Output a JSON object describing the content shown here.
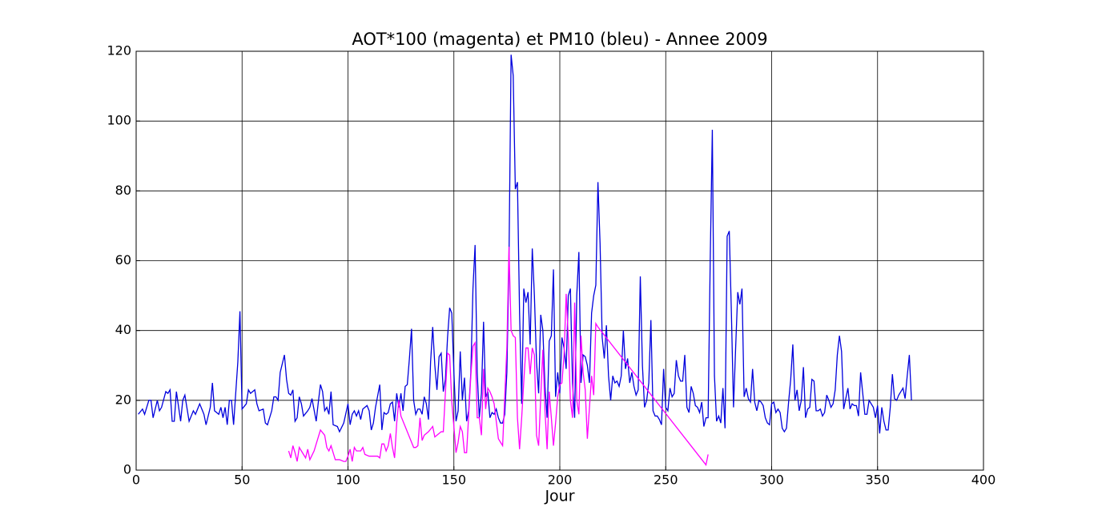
{
  "chart_data": {
    "type": "line",
    "title": "AOT*100 (magenta) et PM10 (bleu) - Annee 2009",
    "xlabel": "Jour",
    "xlim": [
      0,
      400
    ],
    "xticks": [
      0,
      50,
      100,
      150,
      200,
      250,
      300,
      350,
      400
    ],
    "ylim": [
      0,
      120
    ],
    "yticks": [
      0,
      20,
      40,
      60,
      80,
      100,
      120
    ],
    "grid": true,
    "series": [
      {
        "color": "#0000dd",
        "x": [
          1,
          3,
          4,
          6,
          7,
          8,
          10,
          11,
          12,
          14,
          15,
          16,
          17,
          18,
          19,
          21,
          22,
          23,
          25,
          27,
          28,
          30,
          32,
          33,
          35,
          36,
          37,
          39,
          40,
          41,
          42,
          43,
          44,
          45,
          46,
          47,
          48,
          49,
          50,
          52,
          53,
          54,
          56,
          57,
          58,
          60,
          61,
          62,
          64,
          65,
          66,
          67,
          68,
          70,
          71,
          72,
          73,
          74,
          75,
          76,
          77,
          78,
          79,
          81,
          82,
          83,
          85,
          86,
          87,
          88,
          89,
          90,
          91,
          92,
          93,
          95,
          96,
          98,
          100,
          101,
          102,
          103,
          104,
          105,
          106,
          107,
          109,
          110,
          111,
          112,
          113,
          115,
          116,
          117,
          118,
          119,
          120,
          121,
          122,
          123,
          124,
          125,
          126,
          127,
          128,
          129,
          130,
          131,
          132,
          133,
          134,
          135,
          136,
          137,
          138,
          139,
          140,
          141,
          142,
          143,
          144,
          145,
          146,
          147,
          148,
          149,
          150,
          151,
          152,
          153,
          154,
          155,
          156,
          157,
          158,
          159,
          160,
          161,
          162,
          163,
          164,
          165,
          166,
          167,
          168,
          169,
          170,
          171,
          172,
          173,
          174,
          175,
          176,
          177,
          178,
          179,
          180,
          181,
          182,
          183,
          184,
          185,
          186,
          187,
          188,
          189,
          190,
          191,
          192,
          193,
          194,
          195,
          196,
          197,
          198,
          199,
          200,
          201,
          202,
          203,
          204,
          205,
          206,
          207,
          208,
          209,
          210,
          211,
          212,
          213,
          214,
          215,
          216,
          217,
          218,
          219,
          220,
          221,
          222,
          223,
          224,
          225,
          226,
          227,
          228,
          229,
          230,
          231,
          232,
          233,
          234,
          235,
          236,
          237,
          238,
          239,
          240,
          241,
          242,
          243,
          244,
          245,
          246,
          247,
          248,
          249,
          250,
          251,
          252,
          253,
          254,
          255,
          256,
          257,
          258,
          259,
          260,
          261,
          262,
          263,
          264,
          265,
          266,
          267,
          268,
          269,
          270,
          271,
          272,
          273,
          274,
          275,
          276,
          277,
          278,
          279,
          280,
          281,
          282,
          283,
          284,
          285,
          286,
          287,
          288,
          289,
          290,
          291,
          292,
          293,
          294,
          295,
          296,
          297,
          298,
          299,
          300,
          301,
          302,
          303,
          304,
          305,
          306,
          307,
          308,
          309,
          310,
          311,
          312,
          313,
          314,
          315,
          316,
          317,
          318,
          319,
          320,
          321,
          322,
          323,
          324,
          325,
          326,
          327,
          328,
          329,
          330,
          331,
          332,
          333,
          334,
          335,
          336,
          337,
          338,
          339,
          340,
          341,
          342,
          343,
          344,
          345,
          346,
          347,
          348,
          349,
          350,
          351,
          352,
          353,
          354,
          355,
          356,
          357,
          358,
          359,
          360,
          361,
          362,
          363,
          364,
          365,
          366
        ],
        "values": [
          16,
          17.5,
          16,
          20,
          20,
          15,
          20,
          17,
          18,
          22.5,
          22,
          23,
          14,
          14,
          22.5,
          14,
          20,
          21.5,
          14,
          17,
          16,
          19,
          16,
          13,
          18,
          25,
          17,
          16,
          18,
          15,
          18,
          13,
          20,
          20,
          13,
          22,
          31,
          45.5,
          17.5,
          19,
          23,
          22,
          23,
          19,
          17,
          17.5,
          13.5,
          13,
          17,
          21,
          21,
          20,
          28,
          33,
          26,
          22,
          21.5,
          23,
          14,
          15,
          21,
          19,
          15.5,
          17,
          18,
          20.5,
          14,
          19.5,
          24.5,
          22.5,
          17,
          18,
          16,
          22.5,
          13,
          12.5,
          11,
          13.5,
          19,
          13,
          16,
          17,
          15.5,
          17,
          14.5,
          17.5,
          18.5,
          17,
          11.5,
          13.5,
          18,
          24.5,
          11.5,
          16.5,
          16,
          16.5,
          19,
          19.5,
          14,
          22,
          18,
          22,
          17,
          24,
          24.5,
          32,
          40.5,
          20,
          16,
          17.5,
          17.5,
          16,
          21,
          19,
          14.5,
          31,
          41,
          30,
          23,
          32.5,
          33.5,
          22.5,
          26,
          38,
          46.5,
          45,
          28,
          14,
          17,
          34,
          20,
          26.5,
          14,
          17,
          28,
          52,
          64.5,
          28,
          15,
          22,
          42.5,
          21,
          22.5,
          15,
          16.5,
          16,
          17.5,
          15,
          13.5,
          13.5,
          16,
          28,
          60,
          119,
          113,
          80.5,
          82.5,
          45,
          19,
          52,
          48,
          51,
          36,
          63.5,
          50,
          31,
          22,
          44.5,
          40,
          24,
          15,
          37,
          38.5,
          57.5,
          21,
          28,
          22,
          38,
          35,
          29,
          50,
          52,
          25,
          15,
          50,
          62.5,
          25,
          33,
          32.5,
          30,
          25,
          45,
          50,
          53,
          82.5,
          65,
          38,
          32,
          41.5,
          27,
          20,
          27,
          25,
          25.5,
          24,
          27,
          40,
          29,
          32,
          25,
          28,
          24,
          21.5,
          23,
          55.5,
          30,
          18,
          20,
          25,
          43,
          17,
          15.5,
          15.5,
          14.5,
          13,
          29,
          18,
          17,
          23.5,
          21,
          22,
          31.5,
          27,
          25.5,
          25.5,
          33,
          18,
          16.5,
          24,
          22,
          18.5,
          18,
          16.5,
          19.5,
          12.5,
          15,
          15,
          60,
          97.5,
          27,
          14,
          15.5,
          13.5,
          23.5,
          12,
          67,
          68.5,
          45,
          18,
          35,
          51,
          47.5,
          52,
          21,
          23.5,
          20.5,
          19.5,
          29,
          19.5,
          17,
          20,
          19.5,
          18.5,
          15,
          13.5,
          13,
          19,
          19.5,
          16.5,
          17.5,
          16.5,
          12,
          11,
          12,
          19.5,
          26,
          36,
          20,
          23,
          17,
          20,
          29.5,
          15,
          17.5,
          18,
          26,
          25.5,
          17,
          17,
          17.5,
          15.5,
          16.5,
          21.5,
          20,
          18,
          19,
          23,
          33,
          38.5,
          34,
          17.5,
          20.5,
          23.5,
          17.5,
          19,
          18.5,
          18.5,
          15.5,
          28,
          22,
          16,
          16,
          20,
          19,
          18,
          15,
          18.5,
          10.5,
          18,
          14,
          11.5,
          11.5,
          18,
          27.5,
          20.5,
          20,
          21.5,
          22.5,
          23.5,
          20.5,
          27,
          33,
          20
        ]
      },
      {
        "color": "#ff00ff",
        "x": [
          72,
          73,
          74,
          75,
          76,
          77,
          79,
          80,
          81,
          82,
          84,
          86,
          87,
          89,
          90,
          91,
          92,
          93,
          94,
          96,
          98,
          99,
          100,
          101,
          102,
          103,
          104,
          106,
          107,
          108,
          110,
          114,
          115,
          116,
          117,
          118,
          119,
          120,
          121,
          122,
          123,
          124,
          125,
          127,
          131,
          132,
          133,
          134,
          135,
          136,
          138,
          140,
          141,
          142,
          144,
          145,
          147,
          148,
          149,
          150,
          151,
          152,
          153,
          154,
          155,
          156,
          158,
          159,
          160,
          161,
          162,
          163,
          164,
          165,
          166,
          167,
          168,
          169,
          171,
          172,
          173,
          175,
          176,
          177,
          178,
          179,
          180,
          181,
          182,
          183,
          184,
          185,
          186,
          187,
          188,
          189,
          190,
          191,
          192,
          193,
          194,
          195,
          196,
          197,
          198,
          199,
          200,
          201,
          202,
          203,
          204,
          205,
          206,
          207,
          208,
          209,
          210,
          211,
          212,
          213,
          214,
          215,
          216,
          217,
          218,
          269,
          270
        ],
        "values": [
          5.5,
          3.5,
          7,
          5,
          2.5,
          6.5,
          4.5,
          3.5,
          6,
          3,
          5.5,
          9.5,
          11.5,
          10,
          6.5,
          5.5,
          7,
          5,
          3,
          3,
          2.5,
          2.5,
          4,
          6,
          2.5,
          6.5,
          5.5,
          5.5,
          6.5,
          4.5,
          4,
          4,
          3.5,
          7.5,
          7.5,
          5.5,
          7,
          10.5,
          6.5,
          3.5,
          13.5,
          20,
          15.5,
          12.5,
          6.5,
          6.5,
          7,
          15,
          8.5,
          10,
          11,
          12.5,
          9.5,
          10,
          11,
          11,
          33.5,
          33,
          19.5,
          12.5,
          5,
          8,
          12.5,
          11,
          5,
          5,
          27,
          35.5,
          36.5,
          15,
          15,
          10,
          29,
          17.5,
          23.5,
          22.5,
          21,
          19,
          9,
          8,
          7,
          35,
          64,
          40,
          38.5,
          38,
          15,
          6,
          15,
          25.5,
          35,
          35,
          27.5,
          35,
          33,
          10,
          7,
          21,
          34.5,
          17,
          6,
          22.5,
          15,
          7,
          13.5,
          21,
          24.5,
          25,
          33,
          50.5,
          38,
          20,
          15,
          48,
          20,
          16,
          38.5,
          28,
          23,
          9,
          18,
          27,
          21.5,
          42,
          41,
          1.5,
          4.5
        ]
      }
    ]
  }
}
